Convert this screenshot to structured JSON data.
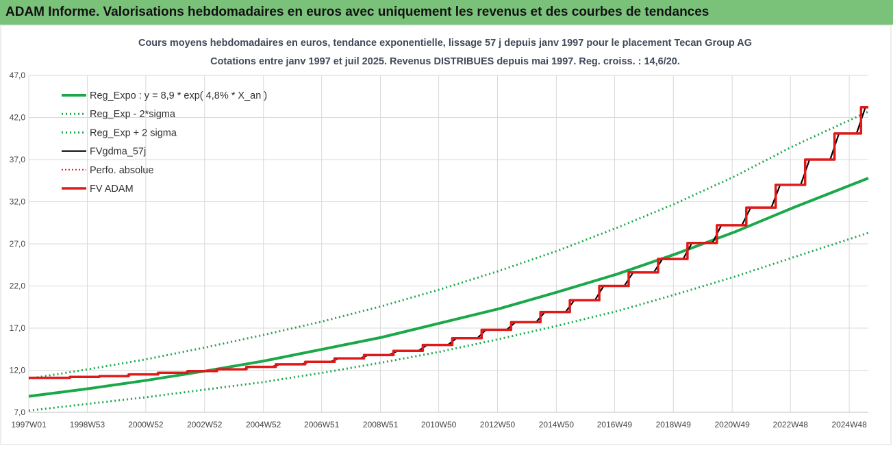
{
  "banner": {
    "title": "ADAM Informe. Valorisations hebdomadaires en euros avec uniquement les revenus et des courbes de tendances"
  },
  "colors": {
    "banner_bg": "#7ac27a",
    "reg_expo": "#1aa84a",
    "fv_gdma": "#000000",
    "perfo": "#e02020",
    "fv_adam": "#e01818",
    "title_text": "#404a5a"
  },
  "chart_data": {
    "type": "line",
    "title_line1": "Cours moyens hebdomadaires en euros, tendance exponentielle, lissage 57 j depuis janv 1997 pour le placement Tecan Group AG",
    "title_line2": "Cotations entre janv 1997 et juil 2025. Revenus DISTRIBUES depuis mai 1997. Reg. croiss. : 14,6/20.",
    "x_range": [
      1997.0,
      2025.55
    ],
    "ylim": [
      7.0,
      47.0
    ],
    "y_ticks": [
      "7,0",
      "12,0",
      "17,0",
      "22,0",
      "27,0",
      "32,0",
      "37,0",
      "42,0",
      "47,0"
    ],
    "x_ticks": [
      {
        "label": "1997W01",
        "x": 1997.0
      },
      {
        "label": "1998W53",
        "x": 1998.99
      },
      {
        "label": "2000W52",
        "x": 2000.98
      },
      {
        "label": "2002W52",
        "x": 2002.98
      },
      {
        "label": "2004W52",
        "x": 2004.98
      },
      {
        "label": "2006W51",
        "x": 2006.96
      },
      {
        "label": "2008W51",
        "x": 2008.96
      },
      {
        "label": "2010W50",
        "x": 2010.94
      },
      {
        "label": "2012W50",
        "x": 2012.94
      },
      {
        "label": "2014W50",
        "x": 2014.94
      },
      {
        "label": "2016W49",
        "x": 2016.92
      },
      {
        "label": "2018W49",
        "x": 2018.92
      },
      {
        "label": "2020W49",
        "x": 2020.92
      },
      {
        "label": "2022W48",
        "x": 2022.9
      },
      {
        "label": "2024W48",
        "x": 2024.9
      }
    ],
    "legend": [
      {
        "key": "reg_expo",
        "label": "Reg_Expo : y = 8,9 * exp( 4,8% *  X_an )"
      },
      {
        "key": "reg_minus",
        "label": "Reg_Exp - 2*sigma"
      },
      {
        "key": "reg_plus",
        "label": "Reg_Exp + 2 sigma"
      },
      {
        "key": "fv_gdma",
        "label": "FVgdma_57j"
      },
      {
        "key": "perfo",
        "label": "Perfo. absolue"
      },
      {
        "key": "fv_adam",
        "label": "FV ADAM"
      }
    ],
    "series": [
      {
        "key": "reg_expo",
        "x": [
          1997.0,
          1999.0,
          2001.0,
          2003.0,
          2005.0,
          2007.0,
          2009.0,
          2011.0,
          2013.0,
          2015.0,
          2017.0,
          2019.0,
          2021.0,
          2023.0,
          2025.55
        ],
        "values": [
          8.9,
          9.8,
          10.8,
          11.9,
          13.1,
          14.5,
          15.9,
          17.6,
          19.3,
          21.3,
          23.4,
          25.8,
          28.4,
          31.3,
          34.8
        ]
      },
      {
        "key": "reg_minus",
        "x": [
          1997.0,
          1999.0,
          2001.0,
          2003.0,
          2005.0,
          2007.0,
          2009.0,
          2011.0,
          2013.0,
          2015.0,
          2017.0,
          2019.0,
          2021.0,
          2023.0,
          2025.55
        ],
        "values": [
          7.2,
          8.0,
          8.8,
          9.7,
          10.6,
          11.7,
          12.9,
          14.2,
          15.7,
          17.3,
          19.0,
          21.0,
          23.1,
          25.4,
          28.3
        ]
      },
      {
        "key": "reg_plus",
        "x": [
          1997.0,
          1999.0,
          2001.0,
          2003.0,
          2005.0,
          2007.0,
          2009.0,
          2011.0,
          2013.0,
          2015.0,
          2017.0,
          2019.0,
          2021.0,
          2023.0,
          2025.55
        ],
        "values": [
          11.0,
          12.1,
          13.3,
          14.7,
          16.2,
          17.8,
          19.6,
          21.6,
          23.8,
          26.2,
          28.9,
          31.8,
          35.0,
          38.6,
          42.7
        ]
      },
      {
        "key": "fv_adam",
        "step_x": [
          1997.0,
          1998.4,
          1999.4,
          2000.4,
          2001.4,
          2002.4,
          2003.4,
          2004.4,
          2005.4,
          2006.4,
          2007.4,
          2008.4,
          2009.4,
          2010.4,
          2011.4,
          2012.4,
          2013.4,
          2014.4,
          2015.4,
          2016.4,
          2017.4,
          2018.4,
          2019.4,
          2020.4,
          2021.4,
          2022.4,
          2023.4,
          2024.4,
          2025.3
        ],
        "step_values": [
          11.1,
          11.2,
          11.3,
          11.5,
          11.7,
          11.9,
          12.1,
          12.4,
          12.7,
          13.0,
          13.4,
          13.8,
          14.3,
          15.0,
          15.8,
          16.8,
          17.7,
          18.9,
          20.3,
          22.0,
          23.6,
          25.2,
          27.1,
          29.2,
          31.3,
          34.0,
          37.0,
          40.1,
          43.2
        ]
      }
    ]
  }
}
